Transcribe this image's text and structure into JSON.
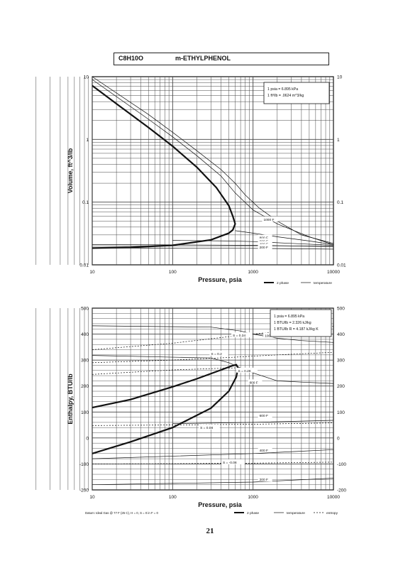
{
  "header": {
    "formula": "C8H10O",
    "name": "m-ETHYLPHENOL"
  },
  "page_number": "21",
  "colors": {
    "ink": "#111111",
    "grid": "#444444",
    "background": "#ffffff"
  },
  "chart_data": [
    {
      "type": "line",
      "title": "",
      "xlabel": "Pressure,  psia",
      "ylabel": "Volume, ft^3/lb",
      "x_scale": "log",
      "y_scale": "log",
      "xlim": [
        10,
        10000
      ],
      "ylim": [
        0.01,
        10
      ],
      "x_ticks": [
        "10",
        "100",
        "1000",
        "10000"
      ],
      "y_ticks": [
        "0.01",
        "0.1",
        "1",
        "10"
      ],
      "grid": true,
      "info_box": [
        "1 psia  =  6.895 kPa",
        "1 ft^3/lb  =  .0624 m^3/kg"
      ],
      "legend": [
        "2 phase",
        "temperature"
      ],
      "legend_position": "bottom-right",
      "series": [
        {
          "style": "2 phase",
          "x": [
            10,
            20,
            50,
            100,
            200,
            350,
            500,
            560,
            600,
            560,
            500,
            300,
            100,
            30,
            10
          ],
          "y": [
            7.2,
            3.7,
            1.55,
            0.78,
            0.36,
            0.17,
            0.088,
            0.06,
            0.045,
            0.036,
            0.032,
            0.025,
            0.0205,
            0.019,
            0.0185
          ]
        },
        {
          "style": "temperature",
          "label": "1000 F",
          "x": [
            10,
            50,
            100,
            200,
            400,
            600,
            800,
            1200,
            2000,
            4000,
            10000
          ],
          "y": [
            10,
            2.5,
            1.3,
            0.66,
            0.33,
            0.2,
            0.13,
            0.08,
            0.05,
            0.03,
            0.022
          ]
        },
        {
          "style": "temperature",
          "label": "",
          "x": [
            10,
            50,
            100,
            200,
            400,
            600,
            1000,
            2000,
            5000,
            10000
          ],
          "y": [
            9,
            2.1,
            1.1,
            0.55,
            0.26,
            0.14,
            0.075,
            0.045,
            0.028,
            0.021
          ]
        },
        {
          "style": "temperature",
          "label": "800 F",
          "x": [
            600,
            1000,
            2000,
            5000,
            10000
          ],
          "y": [
            0.035,
            0.032,
            0.028,
            0.024,
            0.021
          ]
        },
        {
          "style": "temperature",
          "label": "600 F",
          "x": [
            100,
            500,
            1000,
            3000,
            10000
          ],
          "y": [
            0.0245,
            0.024,
            0.0235,
            0.022,
            0.0205
          ]
        },
        {
          "style": "temperature",
          "label": "400 F",
          "x": [
            10,
            100,
            1000,
            10000
          ],
          "y": [
            0.021,
            0.0208,
            0.0205,
            0.0195
          ]
        },
        {
          "style": "temperature",
          "label": "200 F",
          "x": [
            10,
            100,
            1000,
            10000
          ],
          "y": [
            0.0185,
            0.0185,
            0.0183,
            0.0178
          ]
        }
      ]
    },
    {
      "type": "line",
      "title": "",
      "xlabel": "Pressure,  psia",
      "ylabel": "Enthalpy, BTU/lb",
      "x_scale": "log",
      "y_scale": "linear",
      "xlim": [
        10,
        10000
      ],
      "ylim": [
        -200,
        500
      ],
      "x_ticks": [
        "10",
        "100",
        "1000",
        "10000"
      ],
      "y_ticks": [
        "-200",
        "-100",
        "0",
        "100",
        "200",
        "300",
        "400",
        "500"
      ],
      "grid": true,
      "info_box": [
        "1 psia  =  6.895 kPa",
        "1 BTU/lb  =  2.326 kJ/kg",
        "1 BTU/lb R  =  4.187 kJ/kg K"
      ],
      "footnote": "Datum: Ideal Gas @ 77 F (25 C),  H = 0,  S = 0 in F = 0",
      "legend": [
        "2 phase",
        "temperature",
        "entropy"
      ],
      "legend_position": "bottom-right",
      "series": [
        {
          "style": "2 phase",
          "x": [
            10,
            30,
            100,
            200,
            400,
            550,
            620,
            650,
            620,
            500,
            300,
            100,
            30,
            10
          ],
          "y": [
            117,
            148,
            197,
            228,
            262,
            278,
            282,
            270,
            235,
            180,
            115,
            40,
            -15,
            -60
          ]
        },
        {
          "style": "temperature",
          "label": "1000 F",
          "x": [
            10,
            300,
            700,
            1000,
            2000,
            4000,
            10000
          ],
          "y": [
            432,
            427,
            412,
            400,
            384,
            375,
            368
          ]
        },
        {
          "style": "temperature",
          "label": "800 F",
          "x": [
            10,
            300,
            500,
            900,
            2000,
            4000,
            10000
          ],
          "y": [
            318,
            308,
            290,
            255,
            220,
            215,
            210
          ]
        },
        {
          "style": "temperature",
          "label": "600 F",
          "x": [
            100,
            1000,
            10000
          ],
          "y": [
            55,
            60,
            68
          ]
        },
        {
          "style": "temperature",
          "label": "400 F",
          "x": [
            10,
            1000,
            10000
          ],
          "y": [
            -80,
            -60,
            -45
          ]
        },
        {
          "style": "temperature",
          "label": "200 F",
          "x": [
            10,
            1000,
            10000
          ],
          "y": [
            -180,
            -170,
            -155
          ]
        },
        {
          "style": "entropy",
          "label": "S = 0.34",
          "x": [
            10,
            100,
            500,
            2000,
            10000
          ],
          "y": [
            340,
            365,
            390,
            410,
            430
          ]
        },
        {
          "style": "entropy",
          "label": "S = 0.2",
          "x": [
            10,
            100,
            500,
            2000,
            10000
          ],
          "y": [
            290,
            300,
            310,
            320,
            330
          ]
        },
        {
          "style": "entropy",
          "label": "S = 0.28",
          "x": [
            10,
            100,
            600
          ],
          "y": [
            245,
            262,
            270
          ]
        },
        {
          "style": "entropy",
          "label": "S = 0.08",
          "x": [
            10,
            100,
            1000,
            10000
          ],
          "y": [
            48,
            50,
            53,
            58
          ]
        },
        {
          "style": "entropy",
          "label": "S = -0.08",
          "x": [
            10,
            100,
            1000,
            10000
          ],
          "y": [
            -100,
            -99,
            -97,
            -93
          ]
        }
      ]
    }
  ]
}
